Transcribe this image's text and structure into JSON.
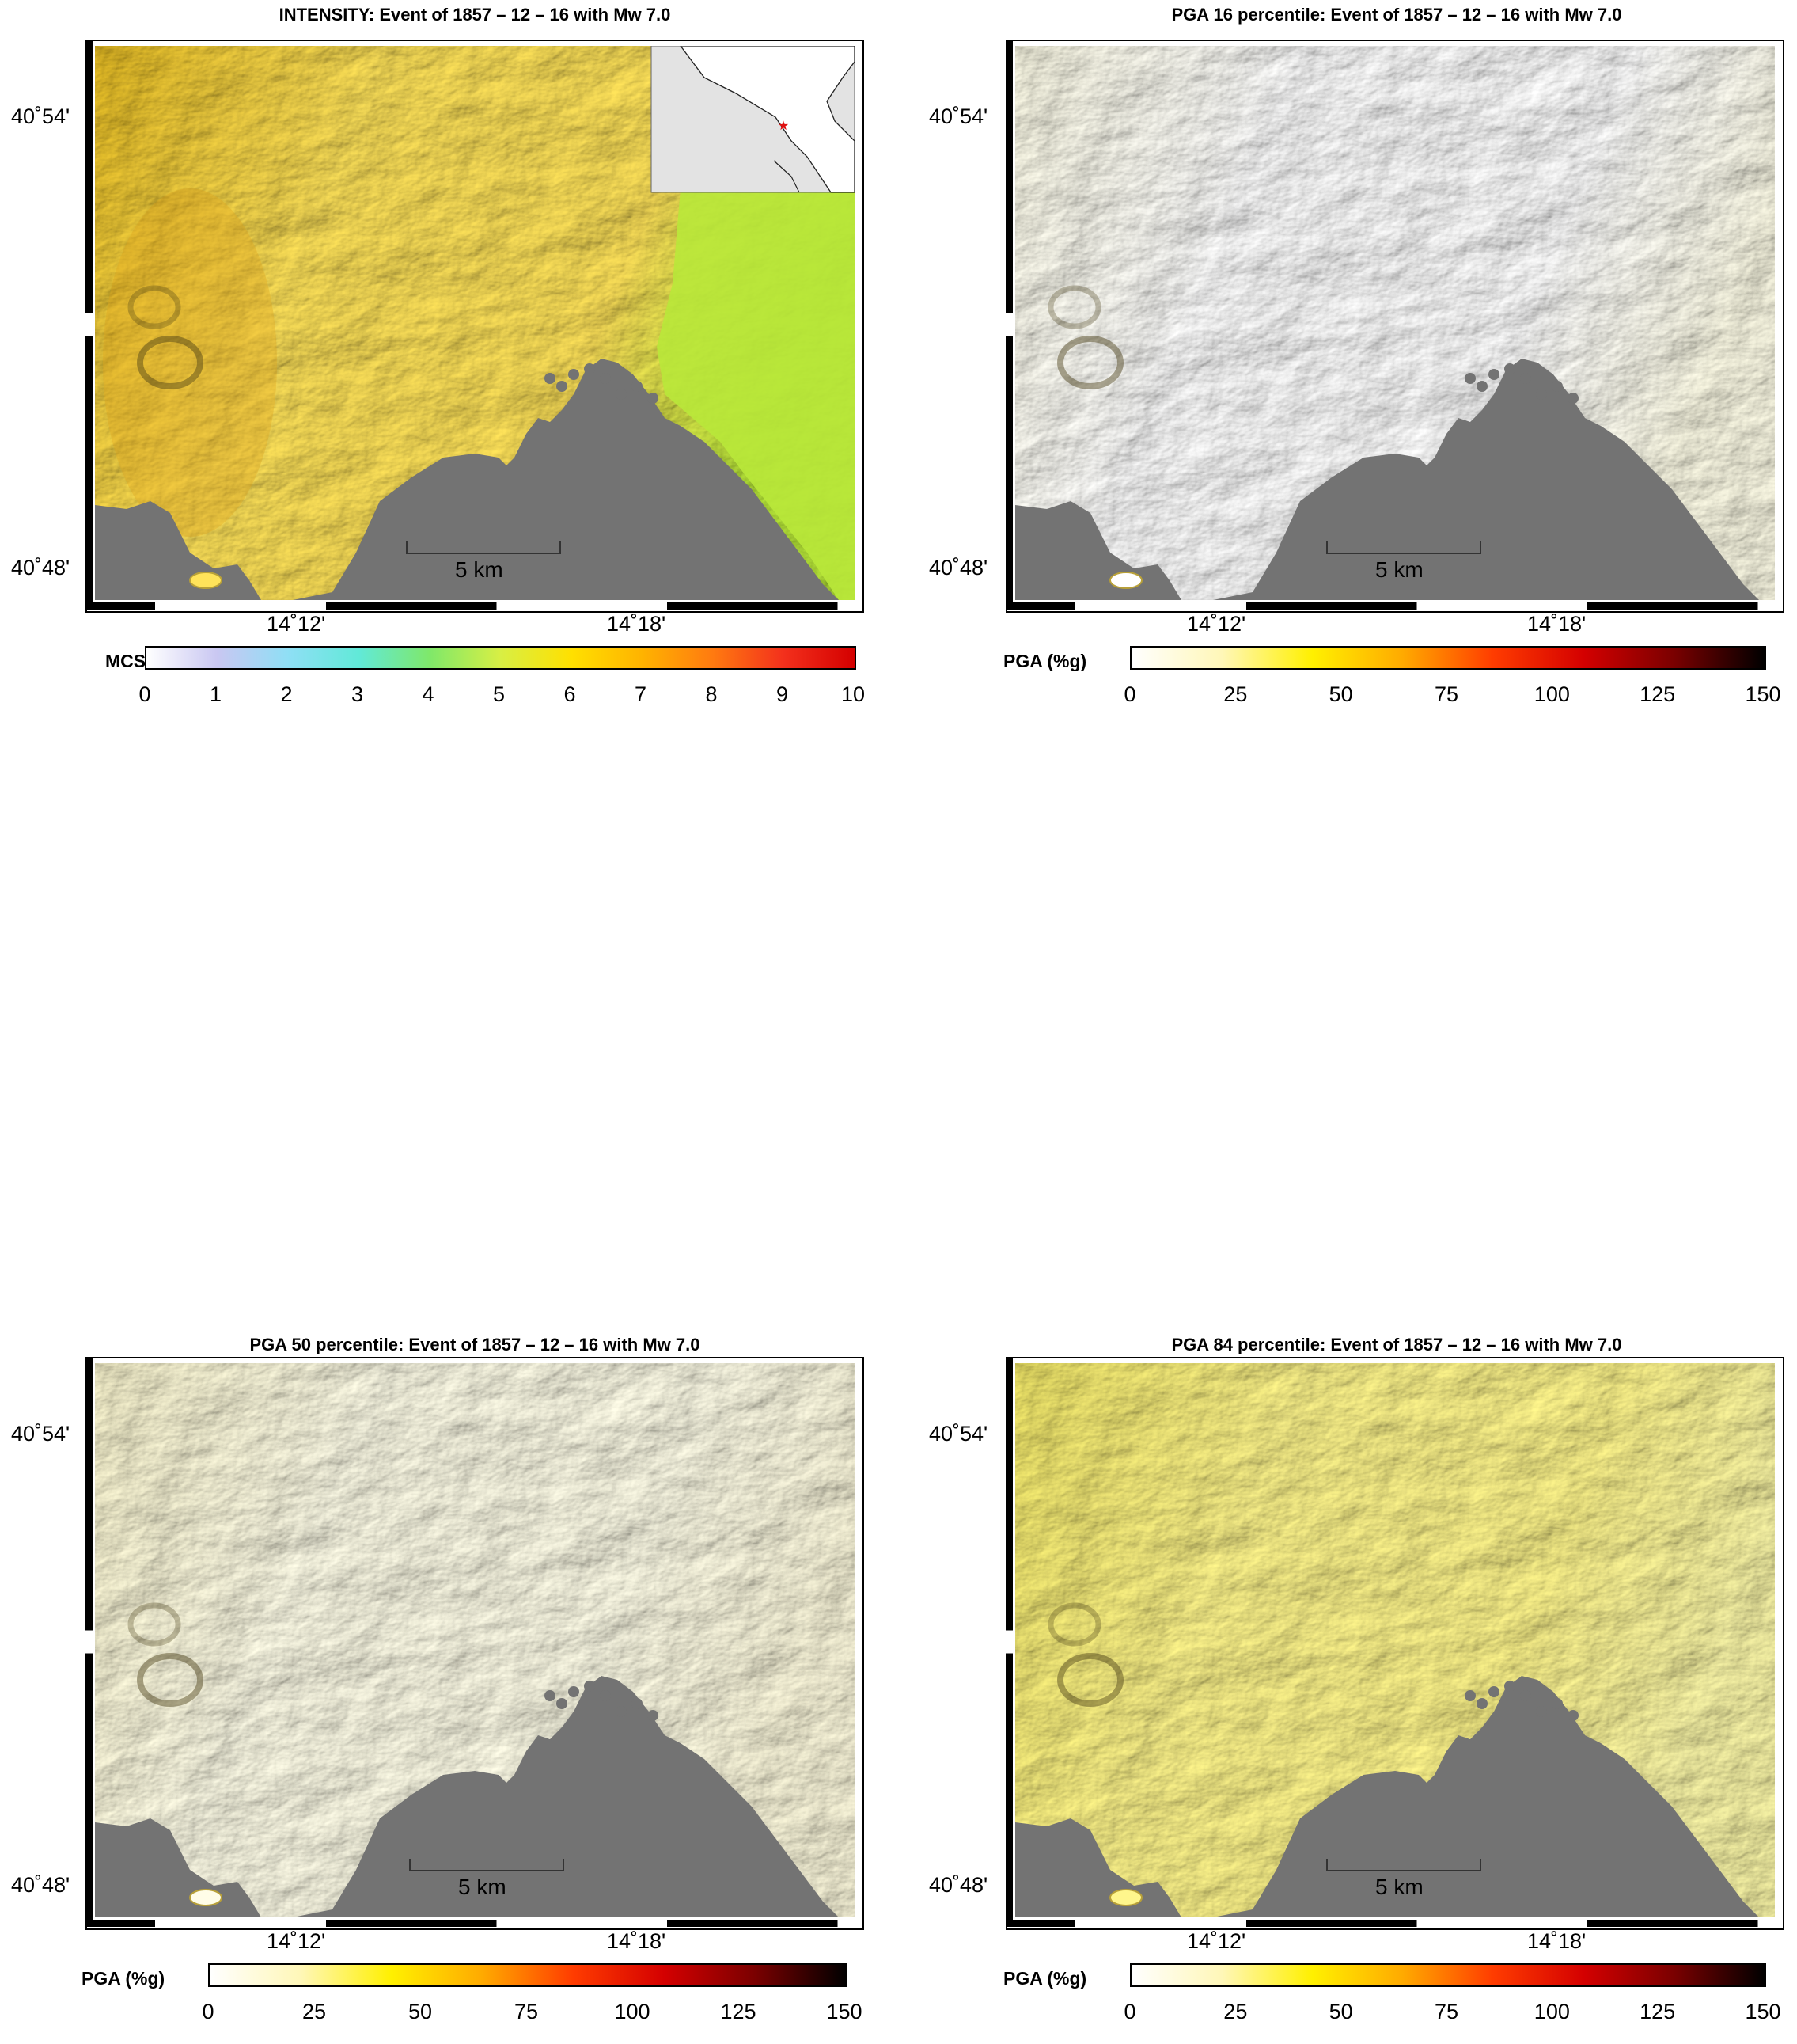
{
  "panels": [
    {
      "id": "intensity",
      "title": "INTENSITY: Event of 1857 – 12 – 16 with Mw 7.0",
      "lat_labels": [
        "40˚54'",
        "40˚48'"
      ],
      "lon_labels": [
        "14˚12'",
        "14˚18'"
      ],
      "scale_label": "5 km",
      "colorbar": {
        "name": "MCS",
        "ticks": [
          "0",
          "1",
          "2",
          "3",
          "4",
          "5",
          "6",
          "7",
          "8",
          "9",
          "10"
        ],
        "gradient": [
          "#ffffff",
          "#c9c7f2",
          "#8fdff5",
          "#61e9d8",
          "#7fe86a",
          "#d8ef44",
          "#ffe000",
          "#ffb300",
          "#ff7a10",
          "#f3301c",
          "#d40000"
        ]
      },
      "shading": {
        "land_base": "#e8be25",
        "land_light": "#ffe35a",
        "east_zone": "#b9e83a",
        "sea": "#737373"
      },
      "has_inset": true
    },
    {
      "id": "pga16",
      "title": "PGA 16 percentile: Event of 1857 – 12 – 16 with Mw 7.0",
      "lat_labels": [
        "40˚54'",
        "40˚48'"
      ],
      "lon_labels": [
        "14˚12'",
        "14˚18'"
      ],
      "scale_label": "5 km",
      "colorbar": {
        "name": "PGA (%g)",
        "ticks": [
          "0",
          "25",
          "50",
          "75",
          "100",
          "125",
          "150"
        ],
        "gradient": [
          "#ffffff",
          "#fff7b8",
          "#fff000",
          "#ffaa00",
          "#ff3c00",
          "#d40000",
          "#7a0000",
          "#000000"
        ]
      },
      "shading": {
        "land_base": "#fdfbe6",
        "land_light": "#ffffff",
        "east_zone": "#fdfbe6",
        "sea": "#737373"
      },
      "has_inset": false
    },
    {
      "id": "pga50",
      "title": "PGA 50 percentile: Event of 1857 – 12 – 16 with Mw 7.0",
      "lat_labels": [
        "40˚54'",
        "40˚48'"
      ],
      "lon_labels": [
        "14˚12'",
        "14˚18'"
      ],
      "scale_label": "5 km",
      "colorbar": {
        "name": "PGA (%g)",
        "ticks": [
          "0",
          "25",
          "50",
          "75",
          "100",
          "125",
          "150"
        ],
        "gradient": [
          "#ffffff",
          "#fff7b8",
          "#fff000",
          "#ffaa00",
          "#ff3c00",
          "#d40000",
          "#7a0000",
          "#000000"
        ]
      },
      "shading": {
        "land_base": "#fbf6cf",
        "land_light": "#fffde8",
        "east_zone": "#fcf8dc",
        "sea": "#737373"
      },
      "has_inset": false
    },
    {
      "id": "pga84",
      "title": "PGA 84 percentile: Event of 1857 – 12 – 16 with Mw 7.0",
      "lat_labels": [
        "40˚54'",
        "40˚48'"
      ],
      "lon_labels": [
        "14˚12'",
        "14˚18'"
      ],
      "scale_label": "5 km",
      "colorbar": {
        "name": "PGA (%g)",
        "ticks": [
          "0",
          "25",
          "50",
          "75",
          "100",
          "125",
          "150"
        ],
        "gradient": [
          "#ffffff",
          "#fff7b8",
          "#fff000",
          "#ffaa00",
          "#ff3c00",
          "#d40000",
          "#7a0000",
          "#000000"
        ]
      },
      "shading": {
        "land_base": "#f4ea6a",
        "land_light": "#fff68c",
        "east_zone": "#fbf7a8",
        "sea": "#737373"
      },
      "has_inset": false
    }
  ]
}
